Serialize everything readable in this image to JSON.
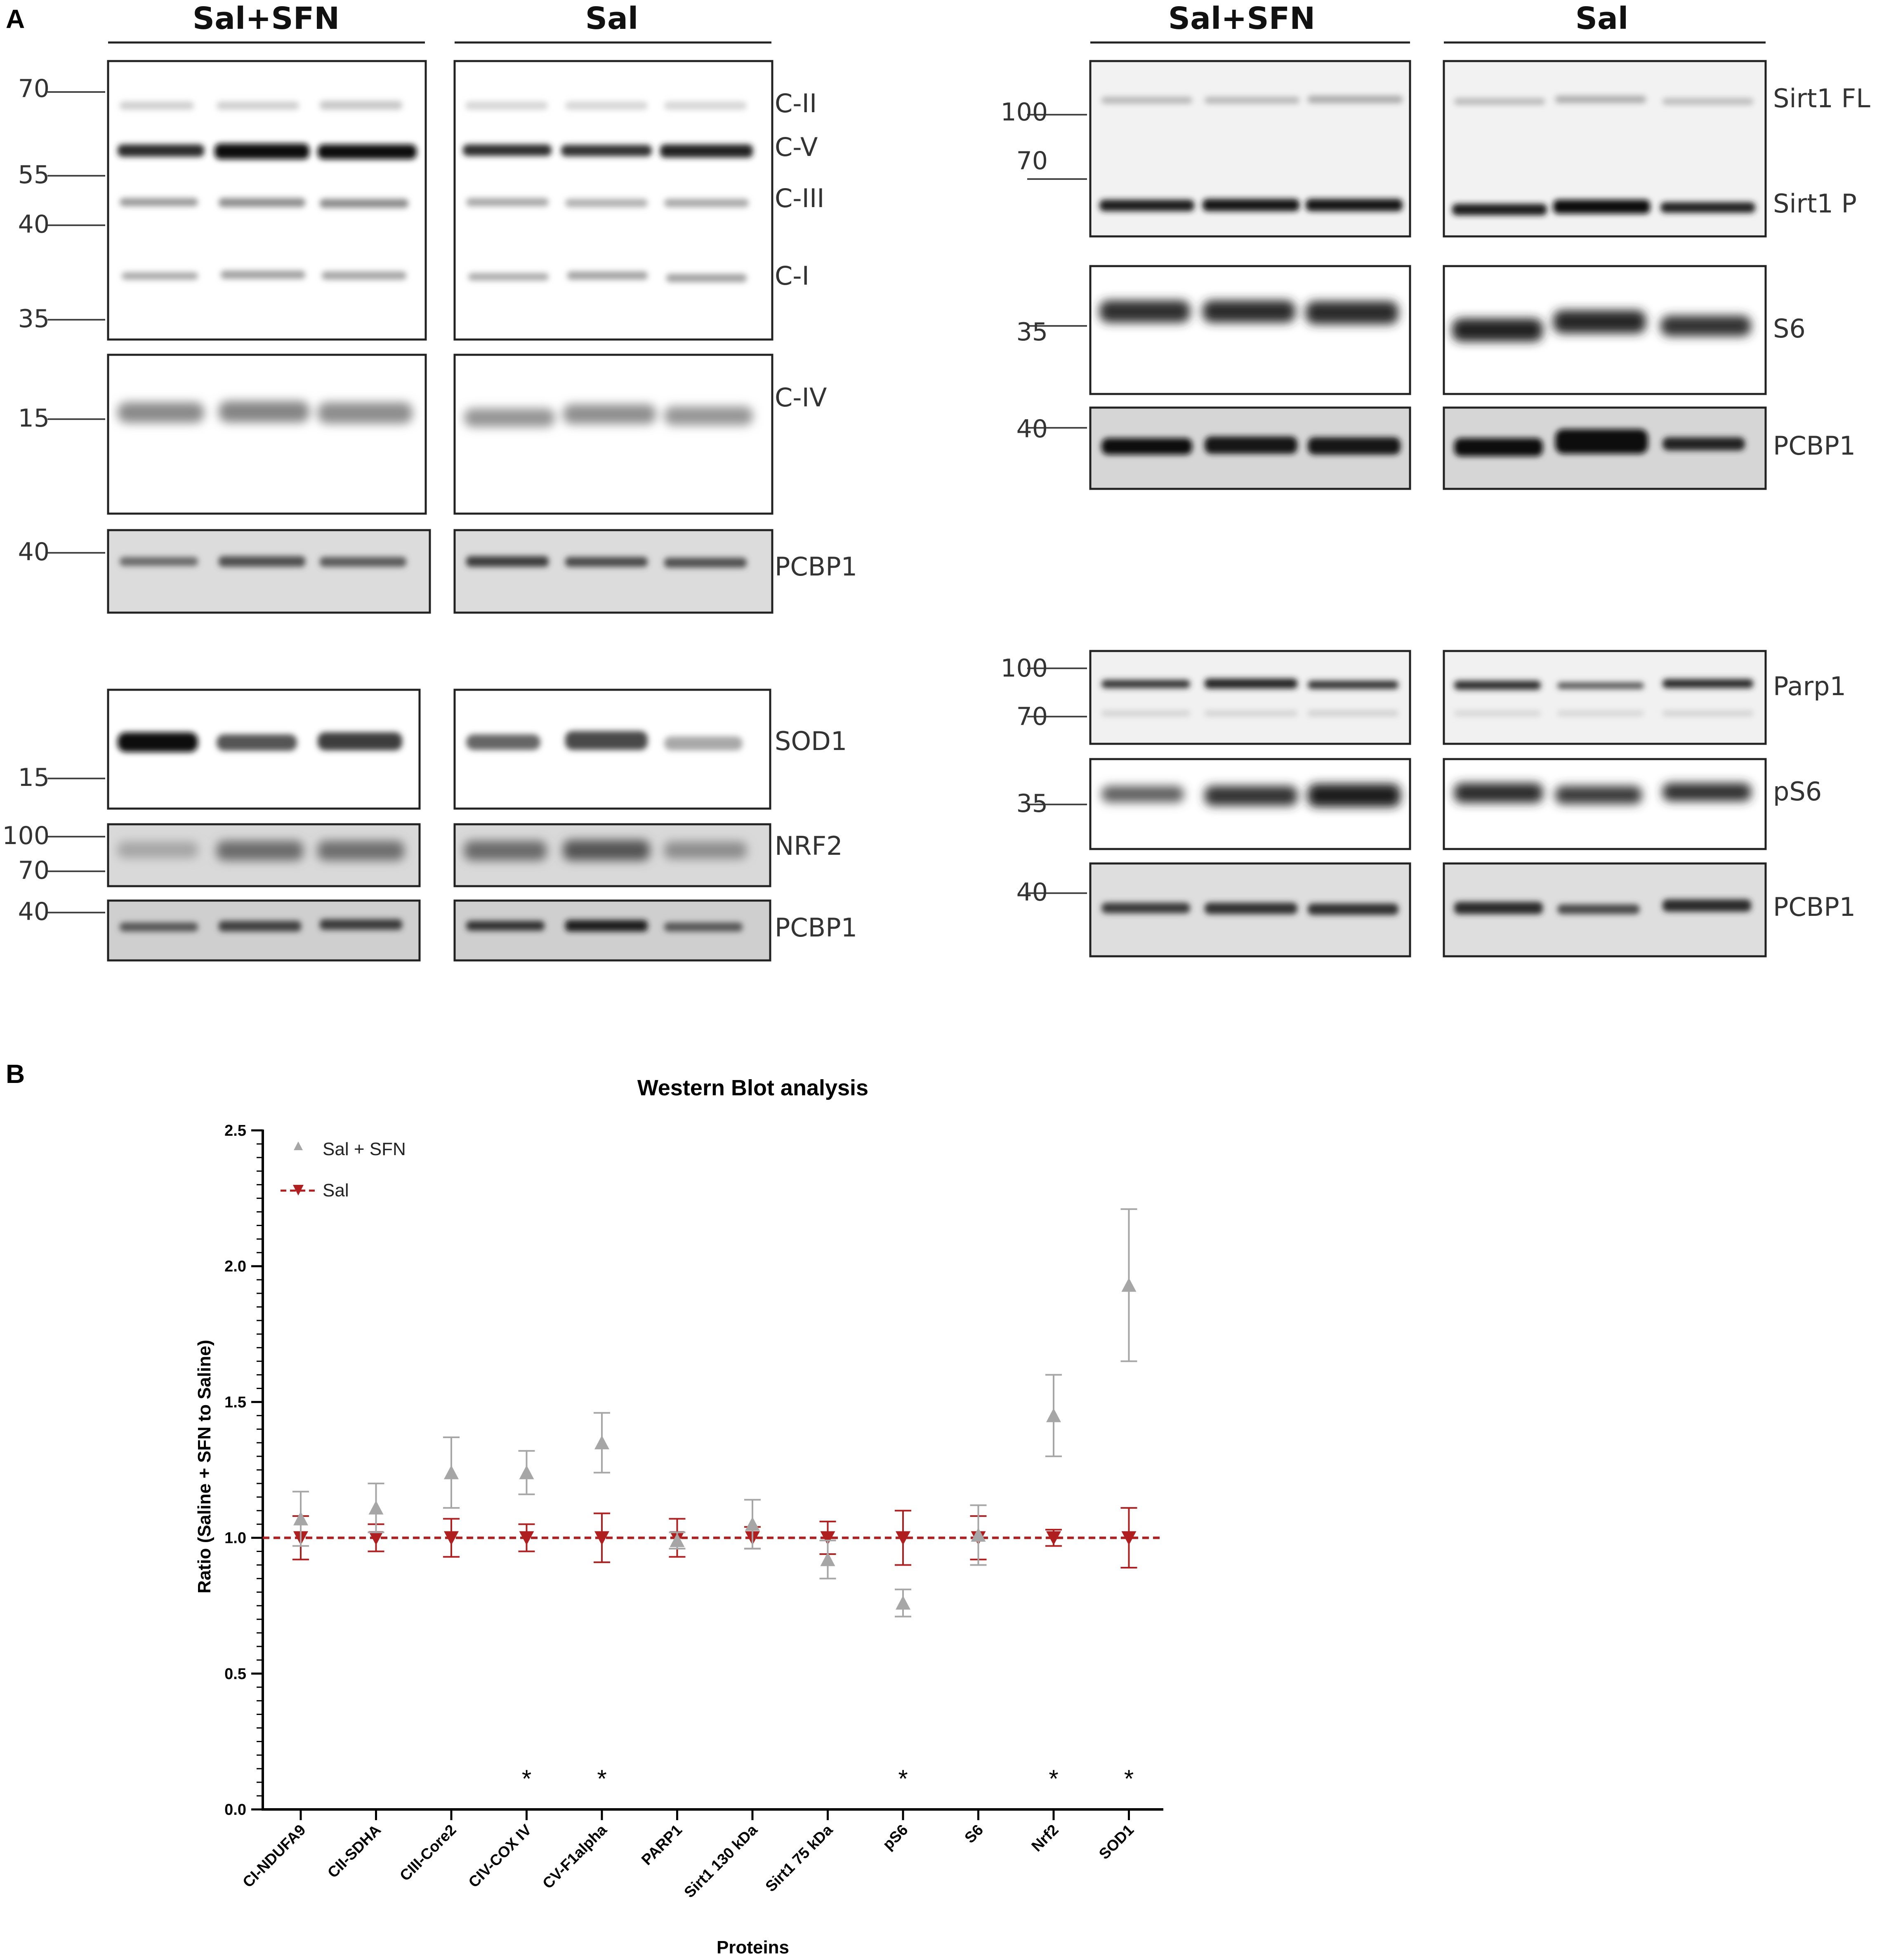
{
  "panel_a": {
    "letter": "A",
    "left": {
      "group_labels": [
        "Sal+SFN",
        "Sal"
      ],
      "blots": [
        {
          "bands": [
            {
              "label": "C-II",
              "mw": "70"
            },
            {
              "label": "C-V",
              "mw": "55"
            },
            {
              "label": "C-III",
              "mw": "40"
            },
            {
              "label": "C-I",
              "mw": "35"
            }
          ]
        },
        {
          "bands": [
            {
              "label": "C-IV",
              "mw": "15"
            }
          ]
        },
        {
          "bands": [
            {
              "label": "PCBP1",
              "mw": "40"
            }
          ]
        },
        {
          "bands": [
            {
              "label": "SOD1",
              "mw": "15"
            }
          ]
        },
        {
          "bands": [
            {
              "label": "NRF2",
              "mw": "100"
            }
          ],
          "extra_mw": "70"
        },
        {
          "bands": [
            {
              "label": "PCBP1",
              "mw": "40"
            }
          ]
        }
      ]
    },
    "right": {
      "group_labels": [
        "Sal+SFN",
        "Sal"
      ],
      "blots": [
        {
          "bands": [
            {
              "label": "Sirt1 FL",
              "mw": "100"
            },
            {
              "label": "Sirt1 P",
              "mw": "70"
            }
          ]
        },
        {
          "bands": [
            {
              "label": "S6",
              "mw": "35"
            }
          ]
        },
        {
          "bands": [
            {
              "label": "PCBP1",
              "mw": "40"
            }
          ]
        },
        {
          "bands": [
            {
              "label": "Parp1",
              "mw": "100"
            }
          ],
          "extra_mw": "70"
        },
        {
          "bands": [
            {
              "label": "pS6",
              "mw": "35"
            }
          ]
        },
        {
          "bands": [
            {
              "label": "PCBP1",
              "mw": "40"
            }
          ]
        }
      ]
    }
  },
  "panel_b": {
    "letter": "B",
    "title": "Western Blot analysis",
    "colors": {
      "sal_sfn": "#a6a6a6",
      "sal": "#b01f1f"
    },
    "significance_marker": "*"
  },
  "chart_data": {
    "type": "scatter",
    "title": "Western Blot analysis",
    "xlabel": "Proteins",
    "ylabel": "Ratio (Saline + SFN to Saline)",
    "ylim": [
      0.0,
      2.5
    ],
    "yticks": [
      "0.0",
      "0.5",
      "1.0",
      "1.5",
      "2.0",
      "2.5"
    ],
    "categories": [
      "CI-NDUFA9",
      "CII-SDHA",
      "CIII-Core2",
      "CIV-COX IV",
      "CV-F1alpha",
      "PARP1",
      "Sirt1 130 kDa",
      "Sirt1 75 kDa",
      "pS6",
      "S6",
      "Nrf2",
      "SOD1"
    ],
    "series": [
      {
        "name": "Sal + SFN",
        "marker": "triangle-up",
        "color": "#a6a6a6",
        "values": [
          1.07,
          1.11,
          1.24,
          1.24,
          1.35,
          0.99,
          1.05,
          0.92,
          0.76,
          1.01,
          1.45,
          1.93
        ],
        "error": [
          0.1,
          0.09,
          0.13,
          0.08,
          0.11,
          0.03,
          0.09,
          0.07,
          0.05,
          0.11,
          0.15,
          0.28
        ]
      },
      {
        "name": "Sal",
        "marker": "triangle-down",
        "color": "#b01f1f",
        "values": [
          1.0,
          1.0,
          1.0,
          1.0,
          1.0,
          1.0,
          1.0,
          1.0,
          1.0,
          1.0,
          1.0,
          1.0
        ],
        "error": [
          0.08,
          0.05,
          0.07,
          0.05,
          0.09,
          0.07,
          0.04,
          0.06,
          0.1,
          0.08,
          0.03,
          0.11
        ]
      }
    ],
    "reference_line": 1.0,
    "significant": [
      "CIV-COX IV",
      "CV-F1alpha",
      "pS6",
      "Nrf2",
      "SOD1"
    ],
    "legend": {
      "placement": "top-left",
      "entries": [
        "Sal + SFN",
        "Sal"
      ]
    },
    "grid": false
  }
}
